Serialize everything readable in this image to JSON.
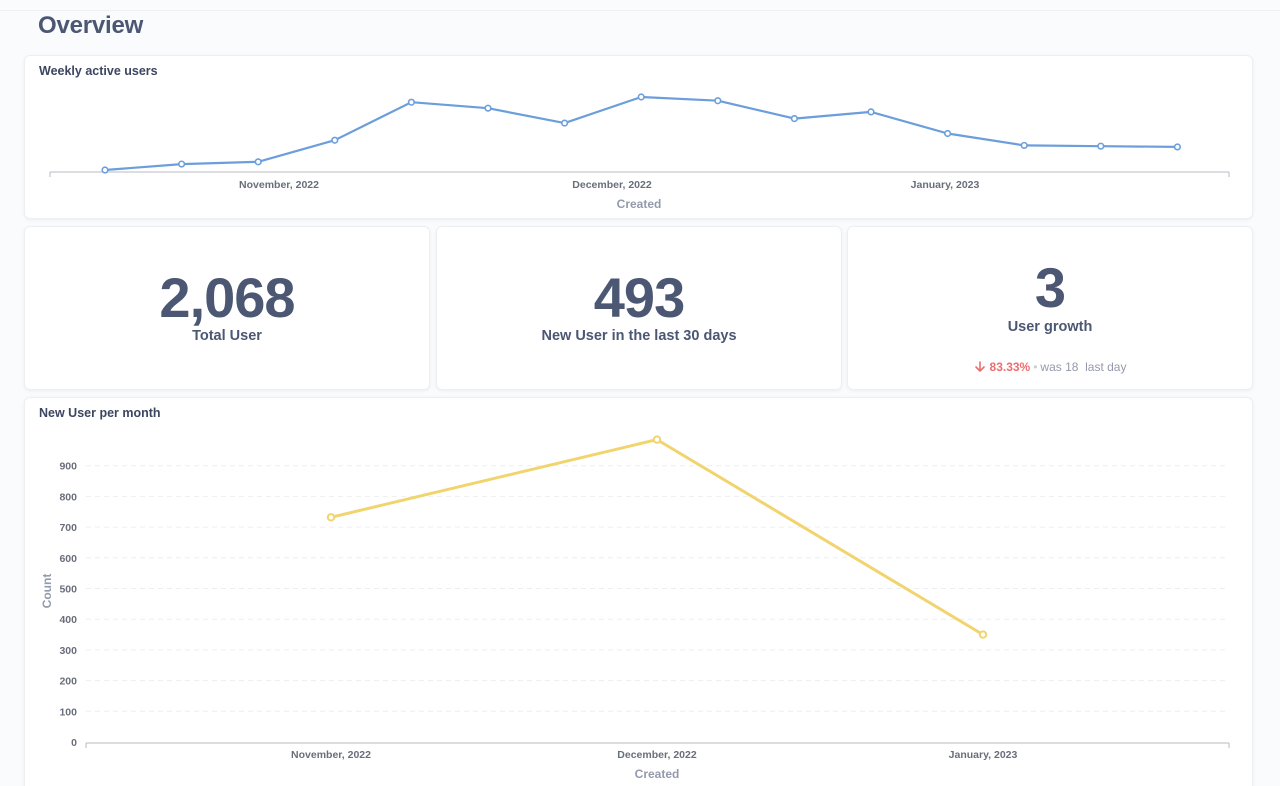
{
  "page": {
    "title": "Overview"
  },
  "weekly_card": {
    "title": "Weekly active users",
    "x_ticks": [
      "November, 2022",
      "December, 2022",
      "January, 2023"
    ],
    "x_title": "Created"
  },
  "scalars": {
    "total": {
      "value": "2,068",
      "label": "Total User"
    },
    "recent": {
      "value": "493",
      "label": "New User in the last 30 days"
    },
    "growth": {
      "value": "3",
      "label": "User growth",
      "change": "83.33%",
      "separator": "•",
      "was_text": "was 18",
      "period": "last day"
    }
  },
  "monthly_card": {
    "title": "New User per month",
    "y_title": "Count",
    "x_title": "Created"
  },
  "colors": {
    "weekly_line": "#6b9edb",
    "monthly_line": "#f1d46e",
    "trend_down": "#ed6e6e"
  },
  "icons": {
    "trend": "arrow-down-icon"
  },
  "chart_data": [
    {
      "type": "line",
      "title": "Weekly active users",
      "xlabel": "Created",
      "ylabel": "",
      "x": [
        "2022-10-17",
        "2022-10-24",
        "2022-10-31",
        "2022-11-07",
        "2022-11-14",
        "2022-11-21",
        "2022-11-28",
        "2022-12-05",
        "2022-12-12",
        "2022-12-19",
        "2022-12-26",
        "2023-01-02",
        "2023-01-09",
        "2023-01-16",
        "2023-01-23"
      ],
      "series": [
        {
          "values": [
            4,
            12,
            15,
            44,
            95,
            87,
            67,
            102,
            97,
            73,
            82,
            53,
            37,
            36,
            35
          ]
        }
      ],
      "x_tick_labels": [
        "November, 2022",
        "December, 2022",
        "January, 2023"
      ],
      "y_axis_hidden": true,
      "grid": false
    },
    {
      "type": "line",
      "title": "New User per month",
      "xlabel": "Created",
      "ylabel": "Count",
      "categories": [
        "November, 2022",
        "December, 2022",
        "January, 2023"
      ],
      "series": [
        {
          "values": [
            732,
            985,
            350
          ]
        }
      ],
      "y_ticks": [
        0,
        100,
        200,
        300,
        400,
        500,
        600,
        700,
        800,
        900
      ],
      "ylim": [
        0,
        1000
      ],
      "grid": true
    }
  ]
}
